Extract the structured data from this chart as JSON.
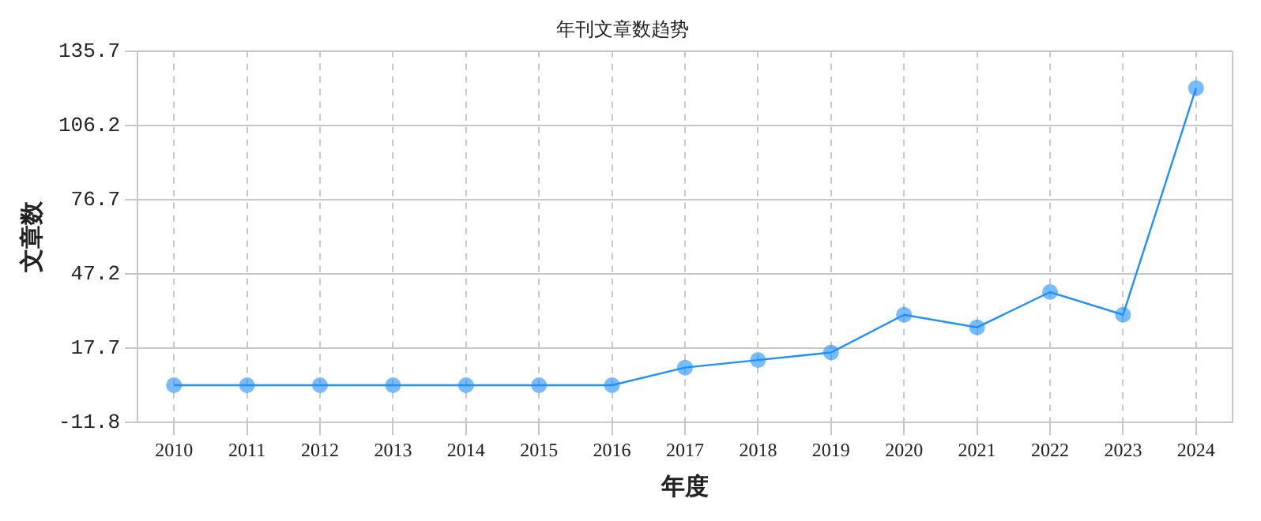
{
  "chart_data": {
    "type": "line",
    "title": "年刊文章数趋势",
    "xlabel": "年度",
    "ylabel": "文章数",
    "categories": [
      "2010",
      "2011",
      "2012",
      "2013",
      "2014",
      "2015",
      "2016",
      "2017",
      "2018",
      "2019",
      "2020",
      "2021",
      "2022",
      "2023",
      "2024"
    ],
    "series": [
      {
        "color": "#1e90ff",
        "values": [
          3,
          3,
          3,
          3,
          3,
          3,
          3,
          10,
          13,
          16,
          31,
          26,
          40,
          31,
          121
        ]
      }
    ],
    "ylim": [
      -11.8,
      135.7
    ],
    "yticks": [
      -11.8,
      17.7,
      47.2,
      76.7,
      106.2,
      135.7
    ],
    "grid": true,
    "marker": "circle",
    "line_style": "solid",
    "legend": false
  }
}
